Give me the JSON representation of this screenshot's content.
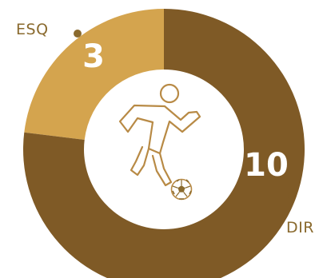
{
  "chart_data": {
    "type": "pie",
    "categories": [
      "ESQ",
      "DIR"
    ],
    "values": [
      3,
      10
    ],
    "data_labels": [
      "3",
      "10"
    ],
    "donut": true,
    "start_angle_deg": 0,
    "direction": "counterclockwise",
    "center_icon": "soccer-player-kicking-ball-icon",
    "title": "",
    "legend": "none"
  },
  "colors": {
    "ESQ": "#d4a44e",
    "DIR": "#7f5a26",
    "label_text": "#8a6a2e",
    "icon_stroke": "#b88a45",
    "background": "#ffffff"
  }
}
